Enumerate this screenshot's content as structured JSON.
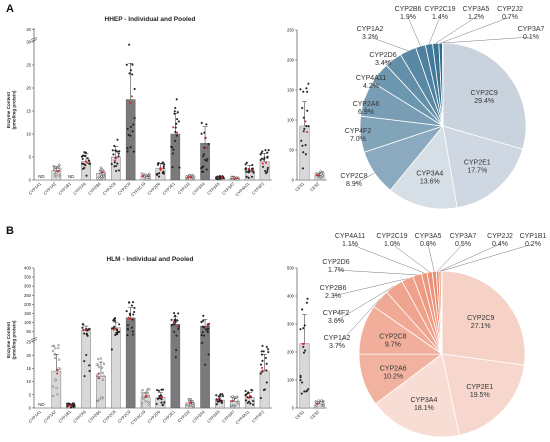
{
  "panel_labels": [
    "A",
    "B"
  ],
  "ylabel_a": "Enzyme Content\n(pmol/mg protein)",
  "ylabel_b": "Enzyme Content\n(pmol/mg protein)",
  "nd_label": "ND",
  "colors": {
    "bar_light": "#d8d8d8",
    "bar_dark": "#7a7a7a",
    "pooled_point": "#e0202a",
    "pie_a_main": "#c9d3de",
    "pie_a_accent": "#1b5f84",
    "pie_b_main": "#f6d2c6",
    "pie_b_accent": "#e9795a"
  },
  "chart_data": [
    {
      "type": "bar",
      "title": "HHEP - Individual and Pooled",
      "categories": [
        "CYP1A1",
        "CYP1A2",
        "CYP1B1",
        "CYP2A6",
        "CYP2B6",
        "CYP2C8",
        "CYP2C9",
        "CYP2C19",
        "CYP2D6",
        "CYP2E1",
        "CYP2J2",
        "CYP3A4",
        "CYP3A5",
        "CYP3A7",
        "CYP4A11",
        "CYP4F2"
      ],
      "values": [
        0,
        2,
        0,
        4,
        1.5,
        5,
        17.5,
        0.8,
        2.5,
        10,
        0.6,
        8,
        0.5,
        0.4,
        2.2,
        4
      ],
      "nd": [
        "CYP1A1",
        "CYP1B1"
      ],
      "dark_bars": [
        "CYP2C9",
        "CYP2E1",
        "CYP3A4"
      ],
      "ylim": [
        0,
        42
      ],
      "yticks": [
        "0",
        "5",
        "10",
        "15",
        "20",
        "25",
        "30",
        "40"
      ],
      "xlabel": ""
    },
    {
      "type": "bar",
      "title": "",
      "categories": [
        "CES1",
        "CES2"
      ],
      "values": [
        90,
        8
      ],
      "ylim": [
        0,
        250
      ],
      "yticks": [
        "0",
        "50",
        "100",
        "150",
        "200",
        "250"
      ]
    },
    {
      "type": "pie",
      "labels": [
        "CYP2C9",
        "CYP2E1",
        "CYP3A4",
        "CYP2C8",
        "CYP4F2",
        "CYP2A6",
        "CYP4A11",
        "CYP2D6",
        "CYP1A2",
        "CYP2B6",
        "CYP2C19",
        "CYP3A5",
        "CYP2J2",
        "CYP3A7"
      ],
      "values": [
        29.4,
        17.7,
        13.6,
        8.9,
        7.0,
        6.9,
        4.2,
        3.4,
        3.2,
        1.9,
        1.4,
        1.2,
        0.7,
        0.1
      ],
      "value_labels": [
        "29.4%",
        "17.7%",
        "13.6%",
        "8.9%",
        "7.0%",
        "6.9%",
        "4.2%",
        "3.4%",
        "3.2%",
        "1.9%",
        "1.4%",
        "1.2%",
        "0.7%",
        "0.1%"
      ]
    },
    {
      "type": "bar",
      "title": "HLM - Individual and Pooled",
      "categories": [
        "CYP1A1",
        "CYP1A2",
        "CYP1B1",
        "CYP2A6",
        "CYP2B6",
        "CYP2C8",
        "CYP2C9",
        "CYP2C19",
        "CYP2D6",
        "CYP2E1",
        "CYP2J2",
        "CYP3A4",
        "CYP3A5",
        "CYP3A7",
        "CYP4A11",
        "CYP4F2"
      ],
      "values": [
        0,
        14,
        1,
        55,
        12,
        70,
        125,
        4,
        4,
        90,
        2,
        80,
        3,
        2.5,
        4,
        14
      ],
      "nd": [
        "CYP1A1"
      ],
      "dark_bars": [
        "CYP2C9",
        "CYP2E1",
        "CYP3A4"
      ],
      "ylim": [
        0,
        400
      ],
      "yticks": [
        "0",
        "5",
        "10",
        "15",
        "20",
        "25",
        "50",
        "100",
        "150",
        "200",
        "250",
        "300",
        "350",
        "400"
      ]
    },
    {
      "type": "bar",
      "title": "",
      "categories": [
        "CES1",
        "CES2"
      ],
      "values": [
        230,
        15
      ],
      "ylim": [
        0,
        500
      ],
      "yticks": [
        "0",
        "100",
        "200",
        "300",
        "400",
        "500"
      ]
    },
    {
      "type": "pie",
      "labels": [
        "CYP2C9",
        "CYP2E1",
        "CYP3A4",
        "CYP2A6",
        "CYP2C8",
        "CYP1A2",
        "CYP4F2",
        "CYP2B6",
        "CYP2D6",
        "CYP4A11",
        "CYP2C19",
        "CYP3A5",
        "CYP3A7",
        "CYP2J2",
        "CYP1B1"
      ],
      "values": [
        27.1,
        19.5,
        18.1,
        10.2,
        9.7,
        3.7,
        3.6,
        2.3,
        1.7,
        1.1,
        1.0,
        0.8,
        0.5,
        0.4,
        0.2
      ],
      "value_labels": [
        "27.1%",
        "19.5%",
        "18.1%",
        "10.2%",
        "9.7%",
        "3.7%",
        "3.6%",
        "2.3%",
        "1.7%",
        "1.1%",
        "1.0%",
        "0.8%",
        "0.5%",
        "0.4%",
        "0.2%"
      ]
    }
  ]
}
